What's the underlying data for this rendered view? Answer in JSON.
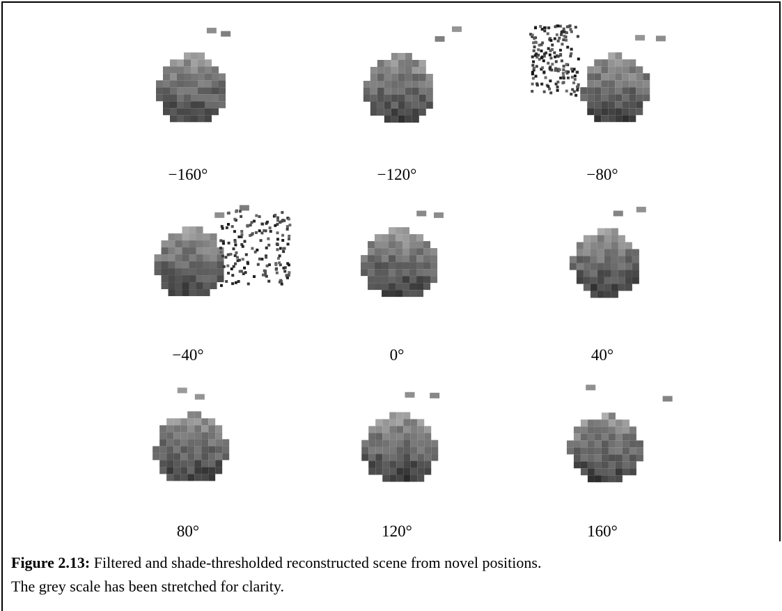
{
  "figure": {
    "panels": [
      {
        "label": "−160°"
      },
      {
        "label": "−120°"
      },
      {
        "label": "−80°"
      },
      {
        "label": "−40°"
      },
      {
        "label": "0°"
      },
      {
        "label": "40°"
      },
      {
        "label": "80°"
      },
      {
        "label": "120°"
      },
      {
        "label": "160°"
      }
    ],
    "caption": {
      "label": "Figure 2.13:",
      "text": "Filtered and shade-thresholded reconstructed scene from novel positions.",
      "text2": "The grey scale has been stretched for clarity."
    }
  }
}
